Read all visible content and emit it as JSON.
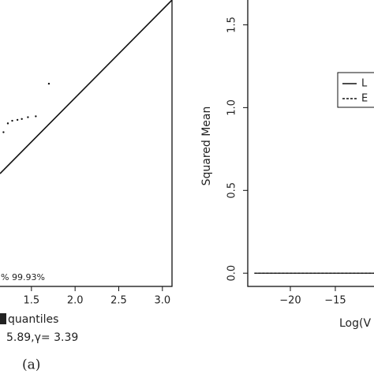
{
  "chart_data": [
    {
      "type": "scatter",
      "x": [
        1.18,
        1.23,
        1.28,
        1.34,
        1.39,
        1.46,
        1.55,
        1.7
      ],
      "values": [
        1.61,
        1.71,
        1.74,
        1.75,
        1.76,
        1.78,
        1.79,
        2.16
      ],
      "color": "#111111",
      "reference_line": {
        "x": [
          1.14,
          3.11
        ],
        "values": [
          1.14,
          3.11
        ]
      },
      "xlim": [
        1.14,
        3.11
      ],
      "ylim": [
        -0.14,
        3.11
      ],
      "xticks": [
        1.5,
        {
          "value": 2,
          "label": "2.0"
        },
        2.5,
        {
          "value": 3,
          "label": "3.0"
        }
      ],
      "annotation": "% 99.93%",
      "xlabel": "quantiles",
      "subtitle": "5.89,γ= 3.39",
      "caption": "(a)"
    },
    {
      "type": "line",
      "ylabel": "Squared Mean",
      "xlabel": "Log(V",
      "xlim": [
        -24.56,
        -10.7
      ],
      "ylim": [
        -0.08,
        1.65
      ],
      "xticks": [
        {
          "value": -20,
          "label": "−20"
        },
        {
          "value": -15,
          "label": "−15"
        }
      ],
      "yticks": [
        {
          "value": 0,
          "label": "0.0"
        },
        0.5,
        {
          "value": 1,
          "label": "1.0"
        },
        1.5
      ],
      "series": [
        {
          "name": "L",
          "color": "#111111",
          "dash": false,
          "x": [
            -24,
            -10.7
          ],
          "values": [
            0,
            0
          ]
        },
        {
          "name": "E",
          "color": "#111111",
          "dash": true,
          "x": [
            -24,
            -10.7
          ],
          "values": [
            0,
            0
          ]
        }
      ]
    }
  ]
}
